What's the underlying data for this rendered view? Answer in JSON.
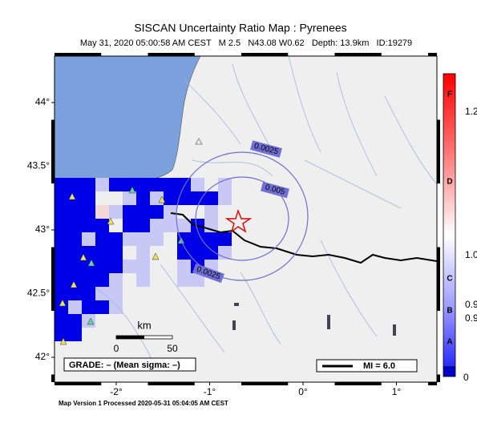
{
  "title": "SISCAN Uncertainty Ratio Map : Pyrenees",
  "subtitle": "May 31, 2020 05:00:58 AM CEST   M 2.5   N43.08 W0.62   Depth: 13.9km   ID:19279",
  "lat_ticks": [
    {
      "value": 44,
      "label": "44°"
    },
    {
      "value": 43.5,
      "label": "43.5°"
    },
    {
      "value": 43,
      "label": "43°"
    },
    {
      "value": 42.5,
      "label": "42.5°"
    },
    {
      "value": 42,
      "label": "42°"
    }
  ],
  "lon_ticks": [
    {
      "value": -2,
      "label": "-2°"
    },
    {
      "value": -1,
      "label": "-1°"
    },
    {
      "value": 0,
      "label": "0°"
    },
    {
      "value": 1,
      "label": "1°"
    }
  ],
  "contour_labels": [
    "0.0025",
    "0.005",
    "0.0025"
  ],
  "scale": {
    "unit": "km",
    "start": "0",
    "end": "50"
  },
  "grade": "GRADE: – (Mean sigma: –)",
  "legend": "MI = 6.0",
  "colorbar": {
    "grades": [
      "F",
      "D",
      "C",
      "B",
      "A"
    ],
    "labels": [
      "1.2",
      "1.0",
      "0.9",
      "0.9",
      "0"
    ]
  },
  "footer": "Map Version 1 Processed 2020-05-31 05:04:05 AM CEST"
}
